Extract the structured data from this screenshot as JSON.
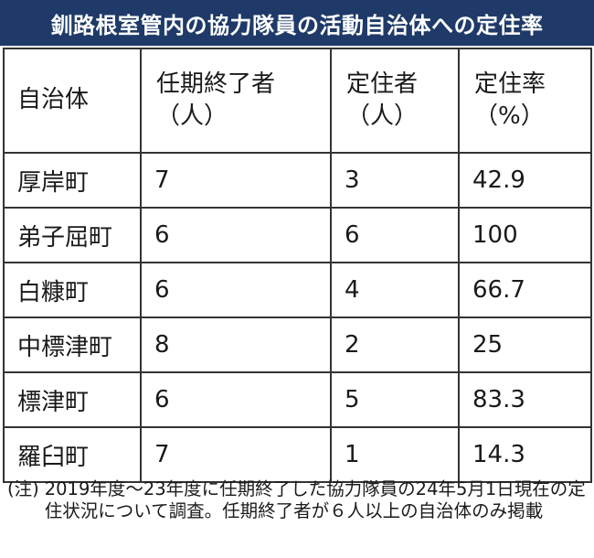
{
  "title": "釧路根室管内の協力隊員の活動自治体への定住率",
  "table": {
    "headers": [
      {
        "line1": "自治体",
        "line2": ""
      },
      {
        "line1": "任期終了者",
        "line2": "（人）"
      },
      {
        "line1": "定住者",
        "line2": "（人）"
      },
      {
        "line1": "定住率",
        "line2": "（%）"
      }
    ],
    "rows": [
      {
        "name": "厚岸町",
        "ended": "7",
        "settled": "3",
        "rate": "42.9"
      },
      {
        "name": "弟子屈町",
        "ended": "6",
        "settled": "6",
        "rate": "100"
      },
      {
        "name": "白糠町",
        "ended": "6",
        "settled": "4",
        "rate": "66.7"
      },
      {
        "name": "中標津町",
        "ended": "8",
        "settled": "2",
        "rate": "25"
      },
      {
        "name": "標津町",
        "ended": "6",
        "settled": "5",
        "rate": "83.3"
      },
      {
        "name": "羅臼町",
        "ended": "7",
        "settled": "1",
        "rate": "14.3"
      }
    ]
  },
  "note": {
    "mark": "(注)",
    "text": "2019年度～23年度に任期終了した協力隊員の24年5月1日現在の定住状況について調査。任期終了者が６人以上の自治体のみ掲載"
  },
  "colors": {
    "title_background": "#1f3a68",
    "title_text": "#ffffff",
    "border": "#333333"
  }
}
